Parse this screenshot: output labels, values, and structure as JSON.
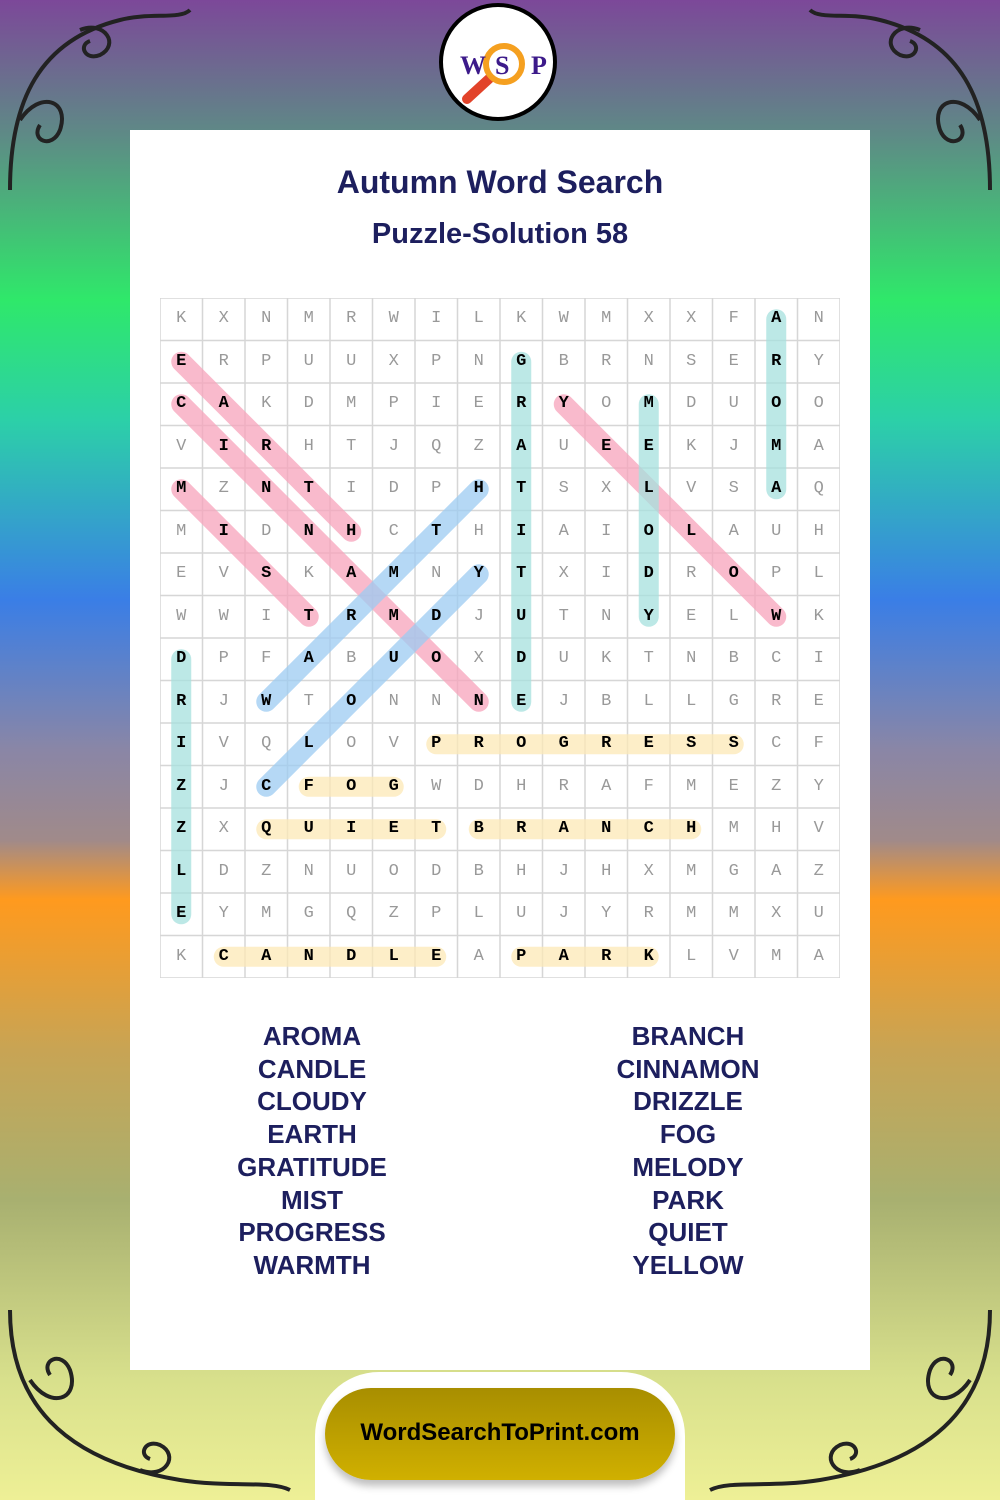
{
  "logo": {
    "letters": [
      "W",
      "S",
      "P"
    ],
    "icon": "magnifying-glass-icon"
  },
  "title": "Autumn Word Search",
  "subtitle": "Puzzle-Solution 58",
  "grid": {
    "rows": [
      "KXNMRWILKWMXXFAN",
      "ERPUUXPNGBRNSERY",
      "CAKDMPIERYOMDUOO",
      "VIRHTJQZAUEEKJMA",
      "MZNTIDPHTSXLVSAQ",
      "MIDNHCTHIAIOLAUH",
      "EVSKAMNYTXIDROPL",
      "WWITRMDJUTNYELWK",
      "DPFABUOXDUKTNBCI",
      "RJWTONNNEJBLLGRE",
      "IVQLOVPROGRESSCF",
      "ZJCFOGWDHRAFMEZY",
      "ZXQUIETBRANCHMHV",
      "LDZNUODBHJHXMGAZ",
      "EYMGQZPLUJYRMMXU",
      "KCANDLEAPARKLVMA"
    ],
    "highlights": [
      {
        "word": "EARTH",
        "start": [
          1,
          0
        ],
        "end": [
          5,
          4
        ],
        "color": "#f7a3bb"
      },
      {
        "word": "CINNAMON",
        "start": [
          2,
          0
        ],
        "end": [
          9,
          7
        ],
        "color": "#f7a3bb"
      },
      {
        "word": "MIST",
        "start": [
          4,
          0
        ],
        "end": [
          7,
          3
        ],
        "color": "#f7a3bb"
      },
      {
        "word": "YELLOW",
        "start": [
          2,
          9
        ],
        "end": [
          7,
          14
        ],
        "color": "#f7a3bb"
      },
      {
        "word": "GRATITUDE",
        "start": [
          1,
          8
        ],
        "end": [
          9,
          8
        ],
        "color": "#a6e0dd"
      },
      {
        "word": "MELODY",
        "start": [
          2,
          11
        ],
        "end": [
          7,
          11
        ],
        "color": "#a6e0dd"
      },
      {
        "word": "AROMA",
        "start": [
          0,
          14
        ],
        "end": [
          4,
          14
        ],
        "color": "#a6e0dd"
      },
      {
        "word": "DRIZZLE",
        "start": [
          8,
          0
        ],
        "end": [
          14,
          0
        ],
        "color": "#a6e0dd"
      },
      {
        "word": "WARMTH",
        "start": [
          9,
          2
        ],
        "end": [
          4,
          7
        ],
        "color": "#9ccbf2"
      },
      {
        "word": "CLOUDY",
        "start": [
          11,
          2
        ],
        "end": [
          6,
          7
        ],
        "color": "#9ccbf2"
      },
      {
        "word": "PROGRESS",
        "start": [
          10,
          6
        ],
        "end": [
          10,
          13
        ],
        "color": "#fce8b6"
      },
      {
        "word": "FOG",
        "start": [
          11,
          3
        ],
        "end": [
          11,
          5
        ],
        "color": "#fce8b6"
      },
      {
        "word": "QUIET",
        "start": [
          12,
          2
        ],
        "end": [
          12,
          6
        ],
        "color": "#fce8b6"
      },
      {
        "word": "BRANCH",
        "start": [
          12,
          7
        ],
        "end": [
          12,
          12
        ],
        "color": "#fce8b6"
      },
      {
        "word": "CANDLE",
        "start": [
          15,
          1
        ],
        "end": [
          15,
          6
        ],
        "color": "#fce8b6"
      },
      {
        "word": "PARK",
        "start": [
          15,
          8
        ],
        "end": [
          15,
          11
        ],
        "color": "#fce8b6"
      }
    ]
  },
  "word_list": {
    "left": [
      "AROMA",
      "CANDLE",
      "CLOUDY",
      "EARTH",
      "GRATITUDE",
      "MIST",
      "PROGRESS",
      "WARMTH"
    ],
    "right": [
      "BRANCH",
      "CINNAMON",
      "DRIZZLE",
      "FOG",
      "MELODY",
      "PARK",
      "QUIET",
      "YELLOW"
    ]
  },
  "footer": {
    "site": "WordSearchToPrint.com"
  }
}
